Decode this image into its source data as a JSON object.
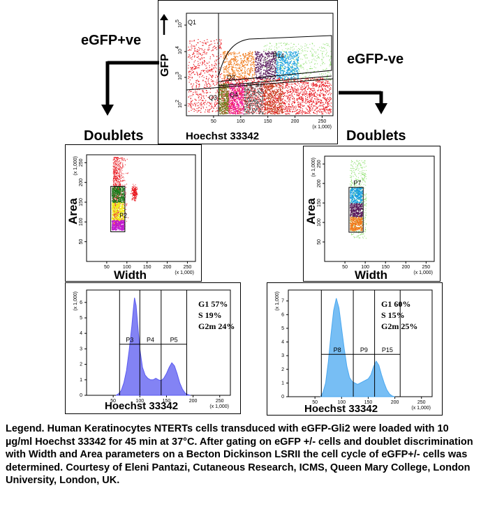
{
  "labels": {
    "egfp_pos": "eGFP+ve",
    "egfp_neg": "eGFP-ve",
    "doublets_left": "Doublets",
    "doublets_right": "Doublets",
    "width_left": "Width",
    "width_right": "Width",
    "area_left": "Area",
    "area_right": "Area",
    "hoechst_top": "Hoechst 33342",
    "hoechst_hist_left": "Hoechst 33342",
    "hoechst_hist_right": "Hoechst 33342",
    "gfp_axis": "GFP"
  },
  "legend_text": "Legend. Human Keratinocytes NTERTs cells transduced with eGFP-Gli2 were loaded with 10 µg/ml Hoechst 33342 for 45 min at 37°C. After gating on eGFP +/- cells and doublet discrimination with Width and Area parameters on a Becton Dickinson LSRII the cell cycle of eGFP+/- cells was determined. Courtesy of Eleni Pantazi, Cutaneous Research, ICMS, Queen Mary College, London University, London, UK.",
  "stats_left": [
    "G1 57%",
    "S 19%",
    "G2m 24%"
  ],
  "stats_right": [
    "G1 60%",
    "S 15%",
    "G2m 25%"
  ],
  "chart_data": [
    {
      "type": "scatter",
      "panel": "top",
      "xlabel": "Hoechst 33342",
      "ylabel": "GFP",
      "x_unit": "(x 1,000)",
      "x_ticks": [
        "50",
        "100",
        "150",
        "200",
        "250"
      ],
      "y_ticks": [
        "10^2",
        "10^3",
        "10^4",
        "10^5"
      ],
      "gates": [
        "Q1",
        "P14",
        "Q2",
        "Q4",
        "Q3"
      ],
      "colors": {
        "red": "#e8141c",
        "orange": "#f07a1a",
        "purple": "#5a1a5e",
        "blue": "#1aa0e0",
        "green": "#8adf6a",
        "magenta": "#f01aa0",
        "gray": "#555555",
        "brown": "#c0401a",
        "olive": "#707a1a"
      }
    },
    {
      "type": "scatter",
      "panel": "doublets-left",
      "xlabel": "Width",
      "ylabel": "Area",
      "x_unit": "(x 1,000)",
      "y_unit": "(x 1,000)",
      "x_ticks": [
        "50",
        "100",
        "150",
        "200",
        "250"
      ],
      "y_ticks": [
        "50",
        "100",
        "150",
        "200",
        "250"
      ],
      "gates": [
        "P2"
      ],
      "colors": {
        "red": "#e8141c",
        "green": "#1a7a1a",
        "yellow": "#f0f01a",
        "magenta": "#c01ad0"
      }
    },
    {
      "type": "scatter",
      "panel": "doublets-right",
      "xlabel": "Width",
      "ylabel": "Area",
      "x_unit": "(x 1,000)",
      "y_unit": "(x 1,000)",
      "x_ticks": [
        "50",
        "100",
        "150",
        "200",
        "250"
      ],
      "y_ticks": [
        "50",
        "100",
        "150",
        "200",
        "250"
      ],
      "gates": [
        "P7"
      ],
      "colors": {
        "green": "#8adf6a",
        "blue": "#1aa0e0",
        "purple": "#5a1a5e",
        "orange": "#f07a1a"
      }
    },
    {
      "type": "area",
      "panel": "histogram-left",
      "xlabel": "Hoechst 33342",
      "x_unit": "(x 1,000)",
      "y_unit": "(x 1,000)",
      "x_ticks": [
        "50",
        "100",
        "150",
        "200",
        "250"
      ],
      "y_ticks": [
        "0",
        "1",
        "2",
        "3",
        "4",
        "5",
        "6"
      ],
      "xlim": [
        0,
        270
      ],
      "ylim": [
        0,
        6.8
      ],
      "gates": [
        "P3",
        "P4",
        "P5"
      ],
      "color": "#5a5af0",
      "x": [
        55,
        60,
        65,
        70,
        75,
        80,
        85,
        88,
        90,
        93,
        96,
        100,
        105,
        110,
        115,
        120,
        125,
        130,
        135,
        140,
        145,
        150,
        155,
        160,
        165,
        170,
        175,
        180,
        185,
        190,
        195
      ],
      "values": [
        0,
        0.1,
        0.3,
        0.8,
        1.6,
        2.9,
        4.5,
        5.6,
        6.3,
        5.8,
        4.6,
        3.0,
        1.8,
        1.3,
        1.1,
        1.0,
        1.0,
        1.1,
        1.0,
        0.95,
        1.1,
        1.4,
        1.8,
        2.1,
        1.9,
        1.4,
        0.8,
        0.4,
        0.15,
        0.05,
        0
      ]
    },
    {
      "type": "area",
      "panel": "histogram-right",
      "xlabel": "Hoechst 33342",
      "x_unit": "(x 1,000)",
      "y_unit": "(x 1,000)",
      "x_ticks": [
        "50",
        "100",
        "150",
        "200",
        "250"
      ],
      "y_ticks": [
        "0",
        "1",
        "2",
        "3",
        "4",
        "5",
        "6",
        "7"
      ],
      "xlim": [
        0,
        270
      ],
      "ylim": [
        0,
        7.8
      ],
      "gates": [
        "P8",
        "P9",
        "P15"
      ],
      "color": "#4aa8f0",
      "x": [
        60,
        65,
        70,
        75,
        80,
        85,
        90,
        95,
        100,
        105,
        110,
        115,
        120,
        125,
        130,
        135,
        140,
        145,
        150,
        155,
        160,
        165,
        170,
        175,
        180,
        185,
        190,
        195,
        200
      ],
      "values": [
        0,
        0.3,
        1.0,
        2.5,
        4.5,
        6.3,
        7.2,
        6.5,
        5.0,
        3.5,
        2.2,
        1.4,
        1.1,
        1.0,
        0.9,
        1.0,
        1.1,
        1.2,
        1.3,
        1.6,
        2.2,
        2.6,
        2.3,
        1.6,
        1.0,
        0.5,
        0.2,
        0.05,
        0
      ]
    }
  ]
}
